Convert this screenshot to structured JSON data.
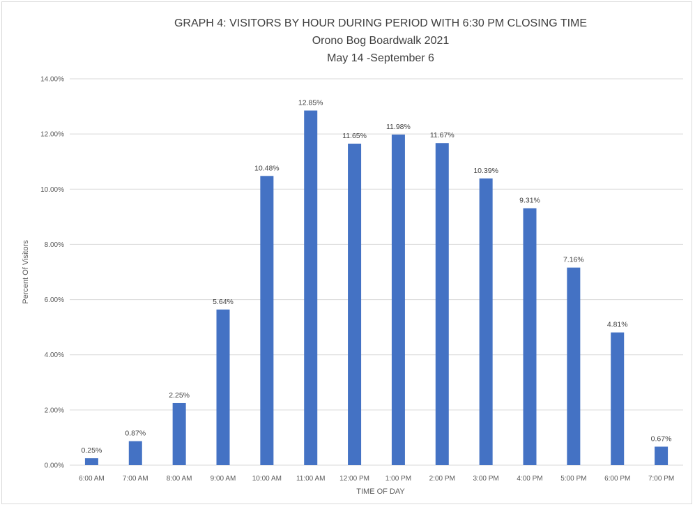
{
  "chart_data": {
    "type": "bar",
    "title": "GRAPH 4: VISITORS BY HOUR DURING PERIOD WITH 6:30 PM CLOSING TIME",
    "subtitle": [
      "Orono Bog Boardwalk 2021",
      "May 14 -September 6"
    ],
    "xlabel": "TIME OF DAY",
    "ylabel": "Percent Of Visitors",
    "ylim": [
      0,
      14
    ],
    "yticks": [
      "0.00%",
      "2.00%",
      "4.00%",
      "6.00%",
      "8.00%",
      "10.00%",
      "12.00%",
      "14.00%"
    ],
    "grid": true,
    "legend": "none",
    "color": "#4472c4",
    "categories": [
      "6:00 AM",
      "7:00 AM",
      "8:00 AM",
      "9:00 AM",
      "10:00 AM",
      "11:00 AM",
      "12:00 PM",
      "1:00 PM",
      "2:00 PM",
      "3:00 PM",
      "4:00 PM",
      "5:00 PM",
      "6:00 PM",
      "7:00 PM"
    ],
    "values": [
      0.25,
      0.87,
      2.25,
      5.64,
      10.48,
      12.85,
      11.65,
      11.98,
      11.67,
      10.39,
      9.31,
      7.16,
      4.81,
      0.67
    ],
    "data_labels": [
      "0.25%",
      "0.87%",
      "2.25%",
      "5.64%",
      "10.48%",
      "12.85%",
      "11.65%",
      "11.98%",
      "11.67%",
      "10.39%",
      "9.31%",
      "7.16%",
      "4.81%",
      "0.67%"
    ]
  }
}
